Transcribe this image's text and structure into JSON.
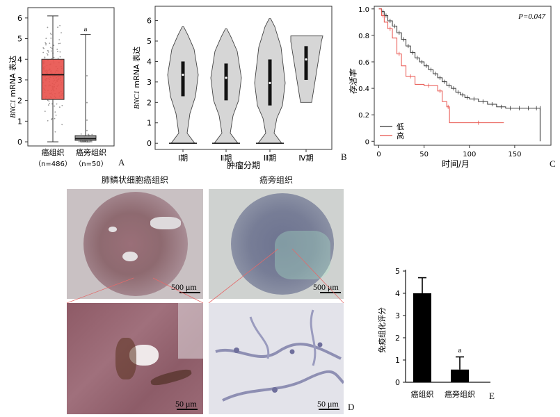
{
  "panels": {
    "A": "A",
    "B": "B",
    "C": "C",
    "D": "D",
    "E": "E"
  },
  "panel_a": {
    "ylabel_italic": "BNC1",
    "ylabel_rest": " mRNA 表达",
    "yticks": [
      "0",
      "1",
      "2",
      "3",
      "4",
      "5",
      "6"
    ],
    "groups": [
      "癌组织",
      "癌旁组织"
    ],
    "n_labels": [
      "（n=486）",
      "（n=50）"
    ],
    "sig": "a"
  },
  "panel_b": {
    "ylabel_italic": "BNC1",
    "ylabel_rest": " mRNA 表达",
    "yticks": [
      "0",
      "1",
      "2",
      "3",
      "4",
      "5",
      "6"
    ],
    "groups": [
      "Ⅰ期",
      "Ⅱ期",
      "Ⅲ期",
      "Ⅳ期"
    ],
    "xlabel": "肿瘤分期"
  },
  "panel_c": {
    "ylabel": "存活率",
    "xlabel": "时间/月",
    "yticks": [
      "0",
      "0.2",
      "0.4",
      "0.6",
      "0.8",
      "1.0"
    ],
    "xticks": [
      "0",
      "50",
      "100",
      "150"
    ],
    "pvalue": "P=0.047",
    "legend": [
      {
        "name": "低",
        "color": "#333333"
      },
      {
        "name": "高",
        "color": "#e8504a"
      }
    ]
  },
  "panel_d": {
    "col_titles": [
      "肺鳞状细胞癌组织",
      "癌旁组织"
    ],
    "scale_labels": [
      "500 μm",
      "500 μm",
      "50 μm",
      "50 μm"
    ]
  },
  "panel_e": {
    "ylabel": "免疫组化评分",
    "yticks": [
      "0",
      "1",
      "2",
      "3",
      "4",
      "5"
    ],
    "groups": [
      "癌组织",
      "癌旁组织"
    ],
    "sig": "a"
  },
  "chart_data": [
    {
      "type": "box",
      "panel": "A",
      "categories": [
        "癌组织",
        "癌旁组织"
      ],
      "ylim": [
        -0.2,
        6.5
      ],
      "series": [
        {
          "whisker_low": 0.0,
          "q1": 2.05,
          "median": 3.25,
          "q3": 4.0,
          "whisker_high": 6.1,
          "color": "#e8504a"
        },
        {
          "whisker_low": 0.0,
          "q1": 0.07,
          "median": 0.15,
          "q3": 0.3,
          "whisker_high": 5.2,
          "color": "#888888"
        }
      ],
      "annotation": "a"
    },
    {
      "type": "violin",
      "panel": "B",
      "categories": [
        "Ⅰ期",
        "Ⅱ期",
        "Ⅲ期",
        "Ⅳ期"
      ],
      "ylim": [
        -0.3,
        6.7
      ],
      "series": [
        {
          "min": 0.0,
          "max": 5.7,
          "q1": 2.3,
          "median": 3.35,
          "q3": 4.0
        },
        {
          "min": 0.0,
          "max": 5.6,
          "q1": 2.1,
          "median": 3.2,
          "q3": 3.9
        },
        {
          "min": 0.0,
          "max": 6.1,
          "q1": 1.85,
          "median": 2.95,
          "q3": 4.1
        },
        {
          "min": 2.0,
          "max": 5.25,
          "q1": 3.1,
          "median": 4.1,
          "q3": 4.75
        }
      ]
    },
    {
      "type": "line",
      "panel": "C",
      "title": "",
      "xlabel": "时间/月",
      "ylabel": "存活率",
      "xlim": [
        -5,
        190
      ],
      "ylim": [
        -0.03,
        1.02
      ],
      "series": [
        {
          "name": "低",
          "color": "#333333",
          "x": [
            0,
            3,
            6,
            10,
            15,
            20,
            25,
            30,
            35,
            40,
            45,
            50,
            55,
            60,
            65,
            70,
            75,
            80,
            85,
            90,
            95,
            100,
            110,
            120,
            130,
            140,
            150,
            160,
            170,
            178,
            178
          ],
          "y": [
            1.0,
            0.98,
            0.95,
            0.91,
            0.87,
            0.82,
            0.77,
            0.72,
            0.67,
            0.63,
            0.6,
            0.57,
            0.54,
            0.51,
            0.48,
            0.45,
            0.42,
            0.4,
            0.37,
            0.35,
            0.33,
            0.32,
            0.3,
            0.28,
            0.26,
            0.25,
            0.25,
            0.25,
            0.25,
            0.25,
            0.0
          ]
        },
        {
          "name": "高",
          "color": "#e8504a",
          "x": [
            0,
            3,
            6,
            10,
            15,
            20,
            25,
            30,
            40,
            50,
            60,
            65,
            70,
            75,
            78,
            100,
            120,
            138
          ],
          "y": [
            1.0,
            0.95,
            0.9,
            0.85,
            0.78,
            0.66,
            0.57,
            0.49,
            0.43,
            0.42,
            0.42,
            0.38,
            0.3,
            0.26,
            0.14,
            0.14,
            0.14,
            0.14
          ]
        }
      ]
    },
    {
      "type": "bar",
      "panel": "E",
      "categories": [
        "癌组织",
        "癌旁组织"
      ],
      "values": [
        4.0,
        0.57
      ],
      "errors": [
        0.7,
        0.57
      ],
      "ylim": [
        0,
        5
      ],
      "annotation": "a"
    }
  ]
}
